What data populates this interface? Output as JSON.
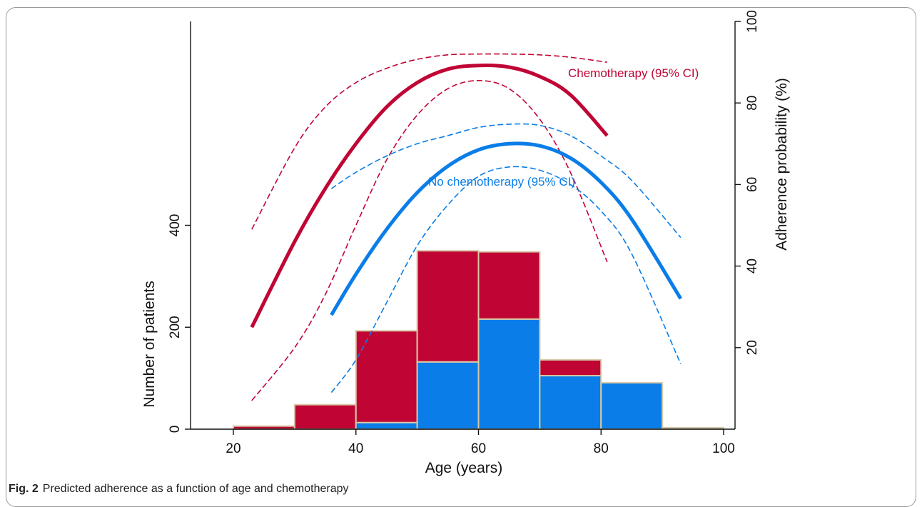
{
  "caption": {
    "label": "Fig. 2",
    "text": "Predicted adherence as a function of age and chemotherapy"
  },
  "chart_data": {
    "type": "bar",
    "xlabel": "Age (years)",
    "ylabel_left": "Number of patients",
    "ylabel_right": "Adherence probability (%)",
    "xlim": [
      20,
      100
    ],
    "xticks": [
      20,
      40,
      60,
      80,
      100
    ],
    "ylim_left": [
      0,
      800
    ],
    "yticks_left": [
      0,
      200,
      400
    ],
    "ylim_right": [
      0,
      100
    ],
    "yticks_right": [
      20,
      40,
      60,
      80,
      100
    ],
    "colors": {
      "chemo": "#c00535",
      "nochemo": "#0a7de8",
      "bar_edge": "#d8c9a6"
    },
    "histogram": {
      "bins": [
        [
          20,
          30
        ],
        [
          30,
          40
        ],
        [
          40,
          50
        ],
        [
          50,
          60
        ],
        [
          60,
          70
        ],
        [
          70,
          80
        ],
        [
          80,
          90
        ],
        [
          90,
          100
        ]
      ],
      "series": [
        {
          "group": "no chemotherapy",
          "values": [
            0,
            0,
            13,
            132,
            216,
            105,
            91,
            3
          ]
        },
        {
          "group": "chemotherapy",
          "values": [
            6,
            48,
            180,
            218,
            132,
            31,
            0,
            0
          ]
        }
      ]
    },
    "curves": [
      {
        "name": "Chemotherapy (95% CI)",
        "color": "#c00535",
        "x": [
          23,
          30,
          35,
          40,
          45,
          50,
          55,
          60,
          65,
          70,
          75,
          81
        ],
        "y": [
          25,
          46,
          59,
          70,
          79,
          85,
          88.3,
          89.2,
          88.8,
          86.5,
          82,
          72
        ],
        "lower": [
          7,
          20,
          33,
          50,
          66,
          77,
          83.5,
          85.5,
          83.5,
          76,
          63,
          41
        ],
        "upper": [
          49,
          69,
          79,
          85,
          88.5,
          90.7,
          91.8,
          92,
          92,
          91.8,
          91.2,
          90
        ]
      },
      {
        "name": "No chemotherapy (95% CI)",
        "color": "#0a7de8",
        "x": [
          36,
          40,
          45,
          50,
          55,
          60,
          65,
          70,
          75,
          80,
          85,
          93
        ],
        "y": [
          28,
          38,
          49,
          58,
          64.5,
          68.5,
          70,
          69.5,
          66.5,
          60.5,
          51.5,
          32
        ],
        "lower": [
          9,
          17,
          31,
          45,
          55,
          62,
          64.3,
          63.5,
          60,
          53.5,
          43,
          16
        ],
        "upper": [
          59,
          63,
          67,
          70,
          72,
          74,
          74.8,
          74.5,
          72,
          67,
          61,
          47
        ]
      }
    ]
  }
}
